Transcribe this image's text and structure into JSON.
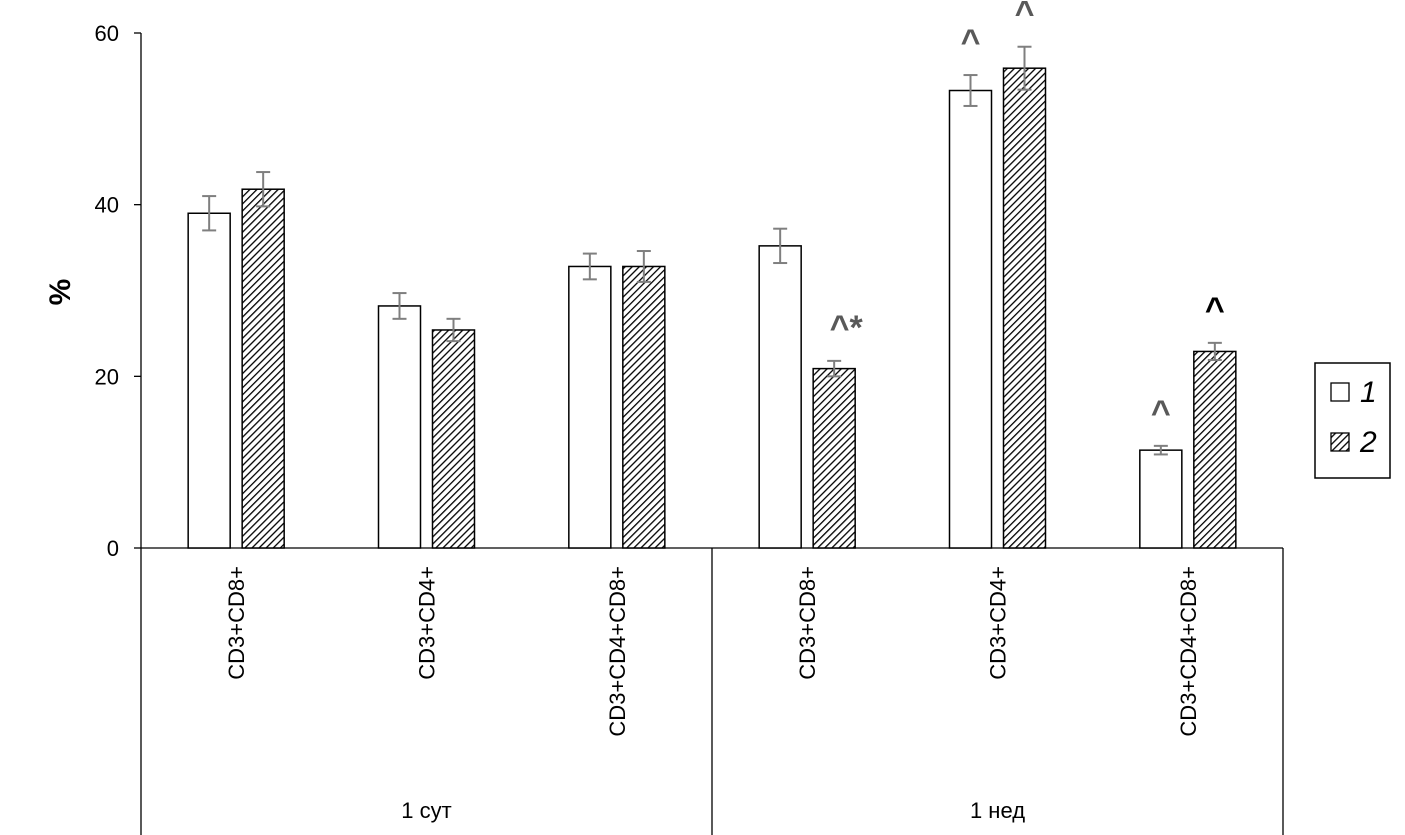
{
  "chart_data": {
    "type": "bar",
    "title": "",
    "ylabel": "%",
    "xlabel": "",
    "ylim": [
      0,
      60
    ],
    "yticks": [
      0,
      20,
      40,
      60
    ],
    "categories": [
      "CD3+CD8+",
      "CD3+CD4+",
      "CD3+CD4+CD8+",
      "CD3+CD8+",
      "CD3+CD4+",
      "CD3+CD4+CD8+"
    ],
    "groups": [
      {
        "label": "1 сут",
        "span": [
          0,
          2
        ]
      },
      {
        "label": "1 нед",
        "span": [
          3,
          5
        ]
      }
    ],
    "series": [
      {
        "name": "1",
        "pattern": "solid",
        "color": "#ffffff",
        "values": [
          39,
          28.2,
          32.8,
          35.2,
          53.3,
          11.4
        ],
        "errors": [
          2.0,
          1.5,
          1.5,
          2.0,
          1.8,
          0.5
        ],
        "annotations": [
          "",
          "",
          "",
          "",
          "^",
          "^"
        ]
      },
      {
        "name": "2",
        "pattern": "hatched",
        "color": "#000000",
        "values": [
          41.8,
          25.4,
          32.8,
          20.9,
          55.9,
          22.9
        ],
        "errors": [
          2.0,
          1.3,
          1.8,
          0.9,
          2.5,
          1.0
        ],
        "annotations": [
          "",
          "",
          "",
          "^*",
          "^",
          "^"
        ]
      }
    ],
    "annotation_colors": {
      "normal": "#595959",
      "bold": "#000000"
    },
    "legend": {
      "position": "right",
      "entries": [
        "1",
        "2"
      ]
    },
    "error_bar_color": "#7f7f7f"
  }
}
